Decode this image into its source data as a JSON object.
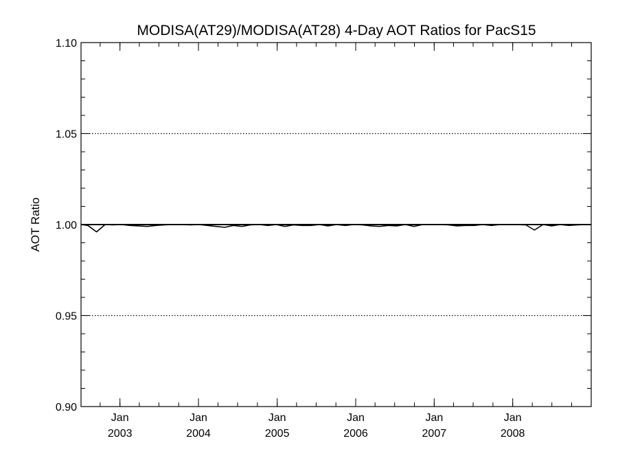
{
  "chart_data": {
    "type": "line",
    "title": "MODISA(AT29)/MODISA(AT28) 4-Day AOT Ratios for PacS15",
    "xlabel": "",
    "ylabel": "AOT Ratio",
    "xlim": [
      "2002-07-04",
      "2008-12-31"
    ],
    "ylim": [
      0.9,
      1.1
    ],
    "y_ticks": [
      "0.90",
      "0.95",
      "1.00",
      "1.05",
      "1.10"
    ],
    "x_ticks": [
      {
        "month": "Jan",
        "year": "2003",
        "date": "2003-01-01"
      },
      {
        "month": "Jan",
        "year": "2004",
        "date": "2004-01-01"
      },
      {
        "month": "Jan",
        "year": "2005",
        "date": "2005-01-01"
      },
      {
        "month": "Jan",
        "year": "2006",
        "date": "2006-01-01"
      },
      {
        "month": "Jan",
        "year": "2007",
        "date": "2007-01-01"
      },
      {
        "month": "Jan",
        "year": "2008",
        "date": "2008-01-01"
      }
    ],
    "grid": "horizontal dotted at 0.95, 1.00, 1.05",
    "reference_line": 1.0,
    "series": [
      {
        "color": "#000000",
        "x": [
          "2002-07-04",
          "2002-08-05",
          "2002-09-14",
          "2002-10-24",
          "2002-11-29",
          "2003-01-08",
          "2003-02-17",
          "2003-03-29",
          "2003-05-08",
          "2003-06-17",
          "2003-07-27",
          "2003-09-05",
          "2003-10-15",
          "2003-11-24",
          "2004-01-03",
          "2004-02-12",
          "2004-03-23",
          "2004-05-02",
          "2004-06-11",
          "2004-07-21",
          "2004-08-30",
          "2004-10-09",
          "2004-11-18",
          "2004-12-28",
          "2005-02-06",
          "2005-03-18",
          "2005-04-27",
          "2005-06-06",
          "2005-07-16",
          "2005-08-25",
          "2005-10-04",
          "2005-11-13",
          "2005-12-23",
          "2006-02-01",
          "2006-03-13",
          "2006-04-22",
          "2006-06-01",
          "2006-07-11",
          "2006-08-20",
          "2006-09-29",
          "2006-11-08",
          "2006-12-18",
          "2007-01-27",
          "2007-03-08",
          "2007-04-17",
          "2007-05-27",
          "2007-07-06",
          "2007-08-15",
          "2007-09-24",
          "2007-11-03",
          "2007-12-13",
          "2008-01-22",
          "2008-03-02",
          "2008-04-11",
          "2008-05-21",
          "2008-06-30",
          "2008-08-09",
          "2008-09-18",
          "2008-10-28",
          "2008-12-07",
          "2008-12-31"
        ],
        "y": [
          1.0,
          0.9995,
          0.996,
          1.0,
          0.9998,
          1.0,
          0.9995,
          0.9993,
          0.999,
          0.9995,
          0.9998,
          1.0,
          1.0,
          0.9998,
          1.0,
          0.9995,
          0.999,
          0.9985,
          0.9995,
          0.999,
          0.9998,
          1.0,
          0.9995,
          1.0,
          0.999,
          0.9998,
          0.9995,
          0.9995,
          1.0,
          0.9993,
          1.0,
          0.9995,
          1.0,
          0.9998,
          0.9993,
          0.999,
          0.9995,
          0.9993,
          1.0,
          0.999,
          1.0,
          1.0,
          1.0,
          0.9998,
          0.9993,
          0.9995,
          0.9995,
          1.0,
          0.9995,
          1.0,
          1.0,
          1.0,
          0.9998,
          0.997,
          1.0,
          0.9993,
          1.0,
          0.9995,
          0.9998,
          1.0,
          1.0
        ]
      }
    ]
  }
}
